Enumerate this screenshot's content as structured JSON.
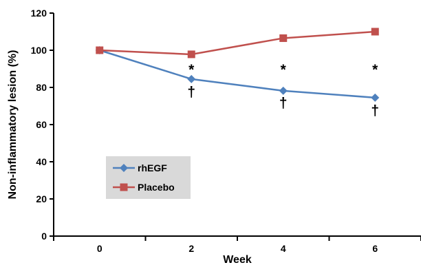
{
  "chart_data": {
    "type": "line",
    "title": "",
    "xlabel": "Week",
    "ylabel": "Non-inflammatory lesion (%)",
    "x": [
      0,
      2,
      4,
      6
    ],
    "x_tick_labels": [
      "0",
      "2",
      "4",
      "6"
    ],
    "xlim": [
      -1,
      7
    ],
    "ylim": [
      0,
      120
    ],
    "y_ticks": [
      0,
      20,
      40,
      60,
      80,
      100,
      120
    ],
    "y_tick_labels": [
      "0",
      "20",
      "40",
      "60",
      "80",
      "100",
      "120"
    ],
    "grid": false,
    "legend_position": "bottom-left",
    "series": [
      {
        "name": "rhEGF",
        "values": [
          100,
          84.5,
          78.2,
          74.5
        ],
        "color": "#4f81bd",
        "marker": "diamond"
      },
      {
        "name": "Placebo",
        "values": [
          100,
          97.8,
          106.5,
          110
        ],
        "color": "#c0504d",
        "marker": "square"
      }
    ],
    "annotations": [
      {
        "text": "*",
        "x": 2,
        "y": 90
      },
      {
        "text": "*",
        "x": 4,
        "y": 90
      },
      {
        "text": "*",
        "x": 6,
        "y": 90
      },
      {
        "text": "†",
        "x": 2,
        "y": 78
      },
      {
        "text": "†",
        "x": 4,
        "y": 72
      },
      {
        "text": "†",
        "x": 6,
        "y": 68
      }
    ],
    "legend_background": "#d9d9d9"
  }
}
